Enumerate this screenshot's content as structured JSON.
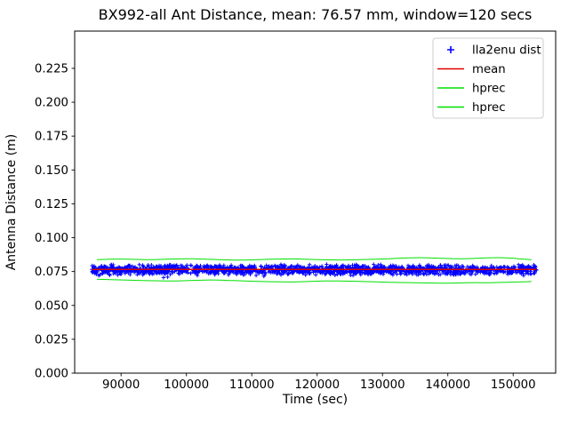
{
  "window": {
    "background_color": "#ffffff",
    "frame_color": "#000000"
  },
  "chart_data": {
    "type": "scatter",
    "title": "BX992-all Ant Distance, mean: 76.57 mm, window=120 secs",
    "xlabel": "Time (sec)",
    "ylabel": "Antenna Distance (m)",
    "xlim": [
      82900,
      156500
    ],
    "ylim": [
      0,
      0.2525
    ],
    "xticks": [
      90000,
      100000,
      110000,
      120000,
      130000,
      140000,
      150000
    ],
    "yticks": [
      0.0,
      0.025,
      0.05,
      0.075,
      0.1,
      0.125,
      0.15,
      0.175,
      0.2,
      0.225
    ],
    "grid": false,
    "legend": {
      "location": "upper right",
      "entries": [
        "lla2enu dist",
        "mean",
        "hprec",
        "hprec"
      ],
      "border_color": "#cccccc",
      "background_color": "rgba(255,255,255,0.9)"
    },
    "mean_value_mm": "76.57",
    "window_secs": "120",
    "series": [
      {
        "name": "lla2enu dist",
        "kind": "scatter",
        "marker": "+",
        "color": "#0000ff",
        "x_start": 85500,
        "x_end": 153600,
        "band_mean": 0.0763,
        "band_halfwidth": 0.0042,
        "outlier_fraction": 0.04,
        "outlier_extra": 0.005,
        "n_points": 1700,
        "seed": 7
      },
      {
        "name": "mean",
        "kind": "hline",
        "color": "#e00000",
        "y": 0.07657,
        "x_start": 85500,
        "x_end": 153600
      },
      {
        "name": "hprec",
        "kind": "line",
        "color": "#00e000",
        "points": [
          [
            86300,
            0.0838
          ],
          [
            88000,
            0.0841
          ],
          [
            90000,
            0.0843
          ],
          [
            92000,
            0.084
          ],
          [
            94000,
            0.0837
          ],
          [
            96000,
            0.0839
          ],
          [
            98000,
            0.0842
          ],
          [
            100000,
            0.0845
          ],
          [
            102000,
            0.0843
          ],
          [
            104000,
            0.0839
          ],
          [
            106000,
            0.0836
          ],
          [
            108000,
            0.0834
          ],
          [
            110000,
            0.0836
          ],
          [
            112000,
            0.0839
          ],
          [
            114000,
            0.0842
          ],
          [
            116000,
            0.0844
          ],
          [
            118000,
            0.0841
          ],
          [
            120000,
            0.0838
          ],
          [
            122000,
            0.0836
          ],
          [
            124000,
            0.0835
          ],
          [
            126000,
            0.0837
          ],
          [
            128000,
            0.084
          ],
          [
            130000,
            0.0843
          ],
          [
            132000,
            0.0847
          ],
          [
            134000,
            0.0851
          ],
          [
            136000,
            0.0853
          ],
          [
            138000,
            0.0849
          ],
          [
            140000,
            0.0846
          ],
          [
            142000,
            0.0844
          ],
          [
            144000,
            0.0847
          ],
          [
            146000,
            0.0851
          ],
          [
            148000,
            0.0853
          ],
          [
            150000,
            0.0848
          ],
          [
            151500,
            0.0842
          ],
          [
            152800,
            0.0837
          ]
        ]
      },
      {
        "name": "hprec",
        "kind": "line",
        "color": "#00e000",
        "points": [
          [
            86300,
            0.0694
          ],
          [
            88000,
            0.0691
          ],
          [
            90000,
            0.0688
          ],
          [
            92000,
            0.0685
          ],
          [
            94000,
            0.0683
          ],
          [
            96000,
            0.0681
          ],
          [
            98000,
            0.068
          ],
          [
            100000,
            0.0683
          ],
          [
            102000,
            0.0686
          ],
          [
            104000,
            0.0688
          ],
          [
            106000,
            0.0685
          ],
          [
            108000,
            0.0682
          ],
          [
            110000,
            0.0679
          ],
          [
            112000,
            0.0676
          ],
          [
            114000,
            0.0674
          ],
          [
            116000,
            0.0673
          ],
          [
            118000,
            0.0676
          ],
          [
            120000,
            0.0679
          ],
          [
            122000,
            0.0681
          ],
          [
            124000,
            0.068
          ],
          [
            126000,
            0.0678
          ],
          [
            128000,
            0.0675
          ],
          [
            130000,
            0.0672
          ],
          [
            132000,
            0.067
          ],
          [
            134000,
            0.0668
          ],
          [
            136000,
            0.0667
          ],
          [
            138000,
            0.0665
          ],
          [
            140000,
            0.0664
          ],
          [
            142000,
            0.0666
          ],
          [
            144000,
            0.0668
          ],
          [
            146000,
            0.0667
          ],
          [
            148000,
            0.0669
          ],
          [
            150000,
            0.0672
          ],
          [
            151500,
            0.0674
          ],
          [
            152800,
            0.0676
          ]
        ]
      }
    ]
  }
}
